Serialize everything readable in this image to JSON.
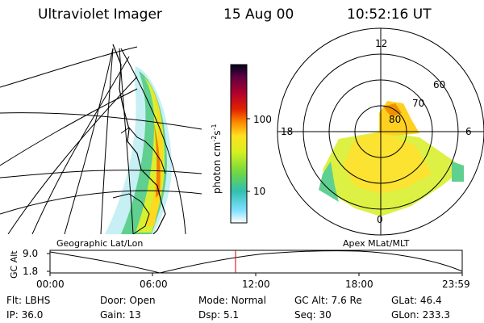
{
  "header": {
    "instrument": "Ultraviolet Imager",
    "date": "15 Aug 00",
    "time": "10:52:16 UT"
  },
  "colorbar": {
    "unit_label": "photon cm",
    "unit_sup1": "-2",
    "unit_mid": "s",
    "unit_sup2": "-1",
    "ticks": [
      "100",
      "10"
    ]
  },
  "polar": {
    "mlt_labels": [
      "12",
      "18",
      "6",
      "0"
    ],
    "lat_labels": [
      "60",
      "70",
      "80"
    ]
  },
  "panel_labels": {
    "left": "Geographic Lat/Lon",
    "right": "Apex MLat/MLT"
  },
  "orbit": {
    "ylabel": "GC Alt",
    "y_ticks": [
      "9.0",
      "1.8"
    ],
    "time_ticks": [
      "00:00",
      "06:00",
      "12:00",
      "18:00",
      "23:59"
    ],
    "current_time_marker": "10:52"
  },
  "info": {
    "flt_label": "Flt:",
    "flt_value": "LBHS",
    "ip_label": "IP:",
    "ip_value": "36.0",
    "door_label": "Door:",
    "door_value": "Open",
    "gain_label": "Gain:",
    "gain_value": "13",
    "mode_label": "Mode:",
    "mode_value": "Normal",
    "dsp_label": "Dsp:",
    "dsp_value": "5.1",
    "gcalt_label": "GC Alt:",
    "gcalt_value": "7.6 Re",
    "seq_label": "Seq:",
    "seq_value": "30",
    "glat_label": "GLat:",
    "glat_value": "46.4",
    "glon_label": "GLon:",
    "glon_value": "233.3"
  },
  "colors": {
    "marker": "#d00000"
  }
}
